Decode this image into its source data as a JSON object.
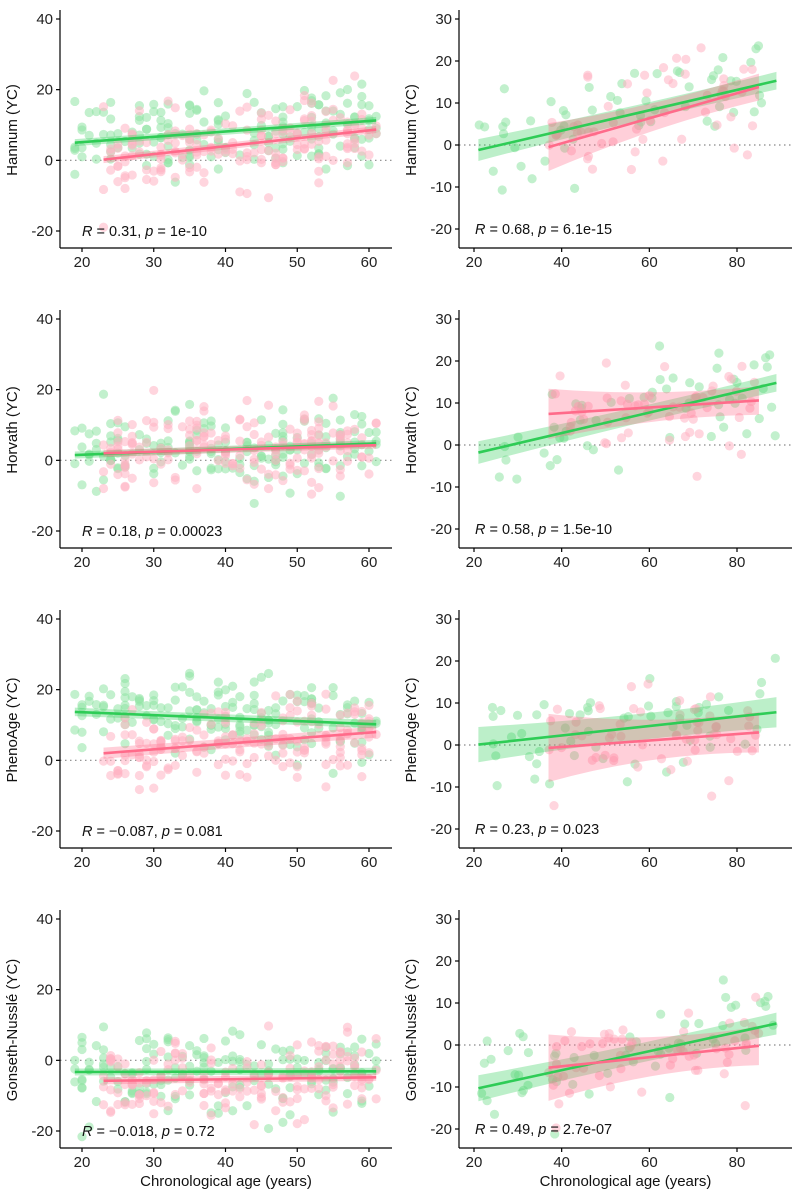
{
  "colors": {
    "green": "#2ecc56",
    "green_point": "#8fe3a4",
    "pink": "#ff6b8a",
    "pink_point": "#ffb3c3",
    "axis": "#000000",
    "zero_line": "#888888"
  },
  "figure": {
    "x_title": "Chronological age (years)"
  },
  "chart_data": [
    {
      "type": "scatter",
      "panel": "row1-left",
      "ylabel": "Hannum (YC)",
      "xlabel": "",
      "xlim": [
        17,
        63
      ],
      "ylim": [
        -25,
        42
      ],
      "xticks": [
        20,
        30,
        40,
        50,
        60
      ],
      "yticks": [
        -20,
        0,
        20,
        40
      ],
      "annotation": {
        "r_label": "R",
        "r_value": "= 0.31, ",
        "p_label": "p",
        "p_value": "= 1e-10"
      },
      "series": [
        {
          "name": "green",
          "fit": {
            "x": [
              19,
              61
            ],
            "y": [
              5.0,
              11.3
            ]
          },
          "ci": 1.0
        },
        {
          "name": "pink",
          "fit": {
            "x": [
              23,
              61
            ],
            "y": [
              0.2,
              8.7
            ]
          },
          "ci": 1.0
        }
      ]
    },
    {
      "type": "scatter",
      "panel": "row1-right",
      "ylabel": "Hannum (YC)",
      "xlabel": "",
      "xlim": [
        13,
        93
      ],
      "ylim": [
        -25,
        32
      ],
      "xticks": [
        20,
        40,
        60,
        80
      ],
      "yticks": [
        -20,
        -10,
        0,
        10,
        20,
        30
      ],
      "annotation": {
        "r_label": "R",
        "r_value": "= 0.68, ",
        "p_label": "p",
        "p_value": "= 6.1e-15"
      },
      "series": [
        {
          "name": "green",
          "fit": {
            "x": [
              21,
              89
            ],
            "y": [
              -1.2,
              15.3
            ]
          },
          "ci_lo": [
            -3.8,
            13.2
          ],
          "ci_hi": [
            1.4,
            17.4
          ]
        },
        {
          "name": "pink",
          "fit": {
            "x": [
              37,
              85
            ],
            "y": [
              -0.5,
              13.8
            ]
          },
          "ci_lo": [
            -6.2,
            10.6
          ],
          "ci_hi": [
            5.2,
            17.0
          ]
        }
      ]
    },
    {
      "type": "scatter",
      "panel": "row2-left",
      "ylabel": "Horvath (YC)",
      "xlabel": "",
      "xlim": [
        17,
        63
      ],
      "ylim": [
        -25,
        42
      ],
      "xticks": [
        20,
        30,
        40,
        50,
        60
      ],
      "yticks": [
        -20,
        0,
        20,
        40
      ],
      "annotation": {
        "r_label": "R",
        "r_value": "= 0.18, ",
        "p_label": "p",
        "p_value": "= 0.00023"
      },
      "series": [
        {
          "name": "green",
          "fit": {
            "x": [
              19,
              61
            ],
            "y": [
              1.5,
              4.8
            ]
          },
          "ci": 1.0
        },
        {
          "name": "pink",
          "fit": {
            "x": [
              23,
              61
            ],
            "y": [
              2.0,
              4.3
            ]
          },
          "ci": 1.0
        }
      ]
    },
    {
      "type": "scatter",
      "panel": "row2-right",
      "ylabel": "Horvath (YC)",
      "xlabel": "",
      "xlim": [
        13,
        93
      ],
      "ylim": [
        -25,
        32
      ],
      "xticks": [
        20,
        40,
        60,
        80
      ],
      "yticks": [
        -20,
        -10,
        0,
        10,
        20,
        30
      ],
      "annotation": {
        "r_label": "R",
        "r_value": "= 0.58, ",
        "p_label": "p",
        "p_value": "= 1.5e-10"
      },
      "series": [
        {
          "name": "green",
          "fit": {
            "x": [
              21,
              89
            ],
            "y": [
              -1.8,
              14.8
            ]
          },
          "ci_lo": [
            -4.5,
            12.7
          ],
          "ci_hi": [
            0.9,
            16.9
          ]
        },
        {
          "name": "pink",
          "fit": {
            "x": [
              37,
              85
            ],
            "y": [
              7.4,
              10.6
            ]
          },
          "ci_lo": [
            1.4,
            7.2
          ],
          "ci_hi": [
            13.4,
            14.0
          ]
        }
      ]
    },
    {
      "type": "scatter",
      "panel": "row3-left",
      "ylabel": "PhenoAge (YC)",
      "xlabel": "",
      "xlim": [
        17,
        63
      ],
      "ylim": [
        -25,
        42
      ],
      "xticks": [
        20,
        30,
        40,
        50,
        60
      ],
      "yticks": [
        -20,
        0,
        20,
        40
      ],
      "annotation": {
        "r_label": "R",
        "r_value": "= −0.087, ",
        "p_label": "p",
        "p_value": "= 0.081"
      },
      "series": [
        {
          "name": "green",
          "fit": {
            "x": [
              19,
              61
            ],
            "y": [
              13.7,
              10.2
            ]
          },
          "ci": 1.2
        },
        {
          "name": "pink",
          "fit": {
            "x": [
              23,
              61
            ],
            "y": [
              2.0,
              8.0
            ]
          },
          "ci": 1.6
        }
      ]
    },
    {
      "type": "scatter",
      "panel": "row3-right",
      "ylabel": "PhenoAge (YC)",
      "xlabel": "",
      "xlim": [
        13,
        93
      ],
      "ylim": [
        -25,
        32
      ],
      "xticks": [
        20,
        40,
        60,
        80
      ],
      "yticks": [
        -20,
        -10,
        0,
        10,
        20,
        30
      ],
      "annotation": {
        "r_label": "R",
        "r_value": "= 0.23, ",
        "p_label": "p",
        "p_value": "= 0.023"
      },
      "series": [
        {
          "name": "green",
          "fit": {
            "x": [
              21,
              89
            ],
            "y": [
              0.1,
              7.8
            ]
          },
          "ci_lo": [
            -4.1,
            4.2
          ],
          "ci_hi": [
            4.3,
            11.4
          ]
        },
        {
          "name": "pink",
          "fit": {
            "x": [
              37,
              85
            ],
            "y": [
              -0.7,
              3.0
            ]
          },
          "ci_lo": [
            -8.8,
            -1.8
          ],
          "ci_hi": [
            7.4,
            7.8
          ]
        }
      ]
    },
    {
      "type": "scatter",
      "panel": "row4-left",
      "ylabel": "Gonseth-Nusslé (YC)",
      "xlabel": "Chronological age (years)",
      "xlim": [
        17,
        63
      ],
      "ylim": [
        -25,
        42
      ],
      "xticks": [
        20,
        30,
        40,
        50,
        60
      ],
      "yticks": [
        -20,
        0,
        20,
        40
      ],
      "annotation": {
        "r_label": "R",
        "r_value": "= −0.018, ",
        "p_label": "p",
        "p_value": "= 0.72"
      },
      "series": [
        {
          "name": "green",
          "fit": {
            "x": [
              19,
              61
            ],
            "y": [
              -3.3,
              -3.1
            ]
          },
          "ci": 1.0
        },
        {
          "name": "pink",
          "fit": {
            "x": [
              23,
              61
            ],
            "y": [
              -5.8,
              -4.8
            ]
          },
          "ci": 1.0
        }
      ]
    },
    {
      "type": "scatter",
      "panel": "row4-right",
      "ylabel": "Gonseth-Nusslé (YC)",
      "xlabel": "Chronological age (years)",
      "xlim": [
        13,
        93
      ],
      "ylim": [
        -25,
        32
      ],
      "xticks": [
        20,
        40,
        60,
        80
      ],
      "yticks": [
        -20,
        -10,
        0,
        10,
        20,
        30
      ],
      "annotation": {
        "r_label": "R",
        "r_value": "= 0.49, ",
        "p_label": "p",
        "p_value": "= 2.7e-07"
      },
      "series": [
        {
          "name": "green",
          "fit": {
            "x": [
              21,
              89
            ],
            "y": [
              -10.3,
              5.1
            ]
          },
          "ci_lo": [
            -13.4,
            2.5
          ],
          "ci_hi": [
            -7.2,
            7.7
          ]
        },
        {
          "name": "pink",
          "fit": {
            "x": [
              37,
              85
            ],
            "y": [
              -5.4,
              -0.2
            ]
          },
          "ci_lo": [
            -13.3,
            -4.8
          ],
          "ci_hi": [
            2.5,
            4.4
          ]
        }
      ]
    }
  ]
}
